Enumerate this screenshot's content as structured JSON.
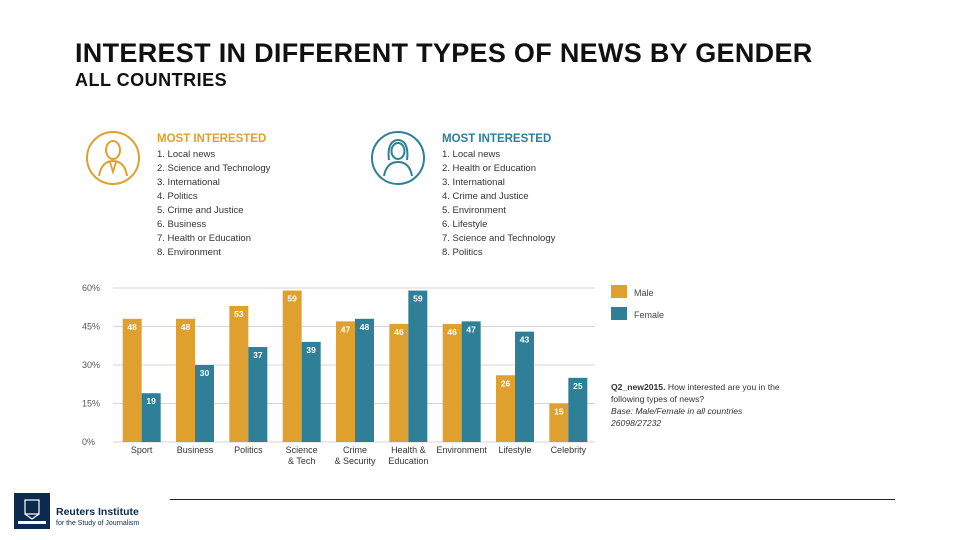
{
  "title": "INTEREST IN DIFFERENT TYPES OF NEWS BY GENDER",
  "subtitle": "ALL COUNTRIES",
  "male_panel": {
    "heading": "MOST INTERESTED",
    "items": [
      "1. Local news",
      "2. Science and Technology",
      "3. International",
      "4. Politics",
      "5. Crime and Justice",
      "6. Business",
      "7. Health or Education",
      "8. Environment"
    ]
  },
  "female_panel": {
    "heading": "MOST INTERESTED",
    "items": [
      "1. Local news",
      "2. Health or Education",
      "3. International",
      "4. Crime and Justice",
      "5. Environment",
      "6. Lifestyle",
      "7. Science and Technology",
      "8. Politics"
    ]
  },
  "legend": {
    "male": "Male",
    "female": "Female"
  },
  "note": {
    "question": "Q2_new2015.",
    "question_text": "How interested are you in the following types of news?",
    "base": "Base: Male/Female in all countries 26098/27232"
  },
  "footer": {
    "org_name": "Reuters Institute",
    "org_sub": "for the Study of Journalism"
  },
  "colors": {
    "male": "#e0a030",
    "female": "#2e7f97",
    "grid": "#d6d6d6"
  },
  "chart_data": {
    "type": "bar",
    "categories": [
      "Sport",
      "Business",
      "Politics",
      "Science & Tech",
      "Crime & Security",
      "Health & Education",
      "Environment",
      "Lifestyle",
      "Celebrity"
    ],
    "category_lines": [
      [
        "Sport"
      ],
      [
        "Business"
      ],
      [
        "Politics"
      ],
      [
        "Science",
        "& Tech"
      ],
      [
        "Crime",
        "& Security"
      ],
      [
        "Health &",
        "Education"
      ],
      [
        "Environment"
      ],
      [
        "Lifestyle"
      ],
      [
        "Celebrity"
      ]
    ],
    "series": [
      {
        "name": "Male",
        "values": [
          48,
          48,
          53,
          59,
          47,
          46,
          46,
          26,
          15
        ]
      },
      {
        "name": "Female",
        "values": [
          19,
          30,
          37,
          39,
          48,
          59,
          47,
          43,
          25
        ]
      }
    ],
    "ylim": [
      0,
      60
    ],
    "yticks": [
      0,
      15,
      30,
      45,
      60
    ],
    "ytick_labels": [
      "0%",
      "15%",
      "30%",
      "45%",
      "60%"
    ],
    "grid": true,
    "legend_position": "right"
  }
}
